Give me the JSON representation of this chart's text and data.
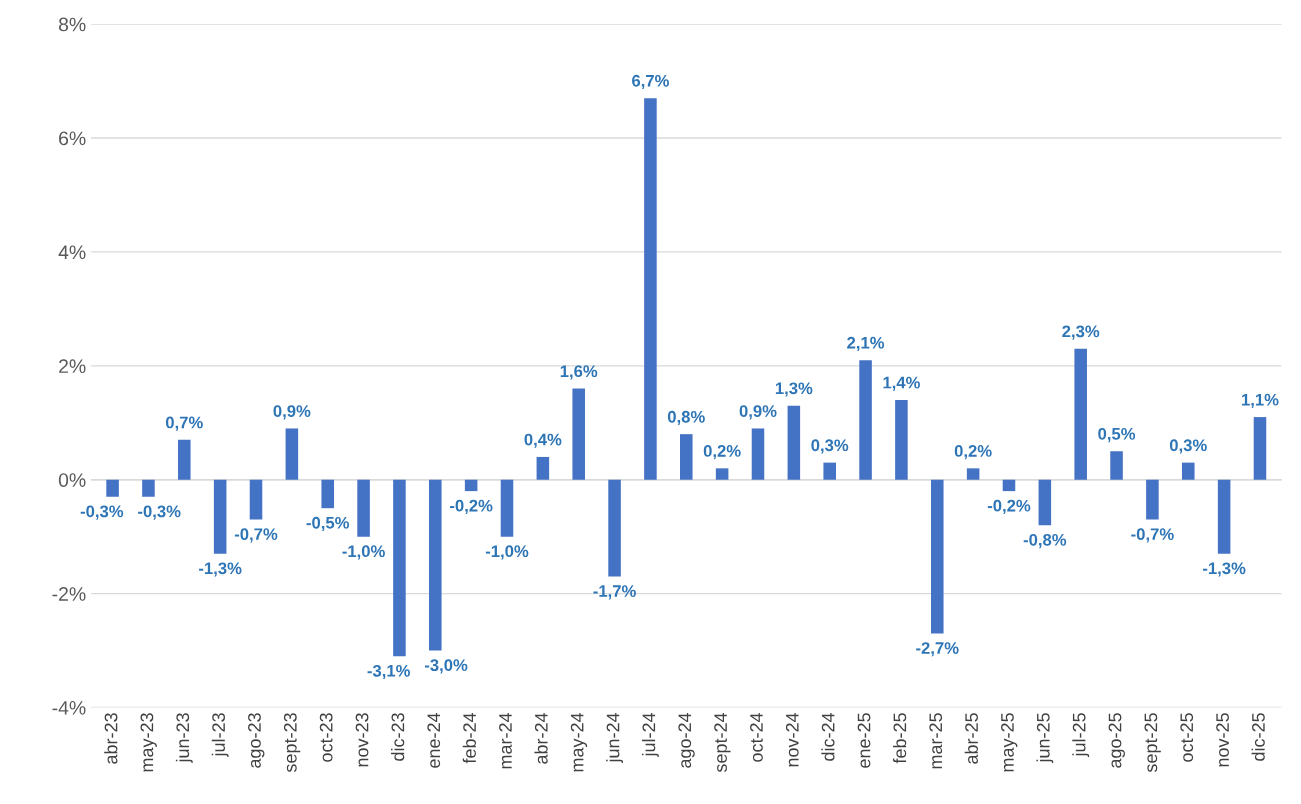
{
  "chart_data": {
    "type": "bar",
    "categories": [
      "abr-23",
      "may-23",
      "jun-23",
      "jul-23",
      "ago-23",
      "sept-23",
      "oct-23",
      "nov-23",
      "dic-23",
      "ene-24",
      "feb-24",
      "mar-24",
      "abr-24",
      "may-24",
      "jun-24",
      "jul-24",
      "ago-24",
      "sept-24",
      "oct-24",
      "nov-24",
      "dic-24",
      "ene-25",
      "feb-25",
      "mar-25",
      "abr-25",
      "may-25",
      "jun-25",
      "jul-25",
      "ago-25",
      "sept-25",
      "oct-25",
      "nov-25",
      "dic-25"
    ],
    "values": [
      -0.3,
      -0.3,
      0.7,
      -1.3,
      -0.7,
      0.9,
      -0.5,
      -1.0,
      -3.1,
      -3.0,
      -0.2,
      -1.0,
      0.4,
      1.6,
      -1.7,
      6.7,
      0.8,
      0.2,
      0.9,
      1.3,
      0.3,
      2.1,
      1.4,
      -2.7,
      0.2,
      -0.2,
      -0.8,
      2.3,
      0.5,
      -0.7,
      0.3,
      -1.3,
      1.1
    ],
    "value_labels": [
      "-0,3%",
      "-0,3%",
      "0,7%",
      "-1,3%",
      "-0,7%",
      "0,9%",
      "-0,5%",
      "-1,0%",
      "-3,1%",
      "-3,0%",
      "-0,2%",
      "-1,0%",
      "0,4%",
      "1,6%",
      "-1,7%",
      "6,7%",
      "0,8%",
      "0,2%",
      "0,9%",
      "1,3%",
      "0,3%",
      "2,1%",
      "1,4%",
      "-2,7%",
      "0,2%",
      "-0,2%",
      "-0,8%",
      "2,3%",
      "0,5%",
      "-0,7%",
      "0,3%",
      "-1,3%",
      "1,1%"
    ],
    "color": "#4472c4",
    "ylim": [
      -4,
      8
    ],
    "yticks": [
      {
        "value": -4,
        "label": "-4%"
      },
      {
        "value": -2,
        "label": "-2%"
      },
      {
        "value": 0,
        "label": "0%"
      },
      {
        "value": 2,
        "label": "2%"
      },
      {
        "value": 4,
        "label": "4%"
      },
      {
        "value": 6,
        "label": "6%"
      },
      {
        "value": 8,
        "label": "8%"
      }
    ],
    "grid": "y"
  }
}
